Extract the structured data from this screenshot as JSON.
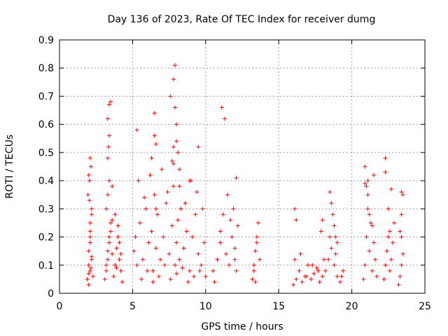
{
  "chart_data": {
    "type": "scatter",
    "title": "Day 136 of 2023, Rate Of TEC Index for receiver dumg",
    "xlabel": "GPS time / hours",
    "ylabel": "ROTI / TECUs",
    "xlim": [
      0,
      25
    ],
    "ylim": [
      0,
      0.9
    ],
    "xticks": [
      0,
      5,
      10,
      15,
      20,
      25
    ],
    "yticks": [
      0,
      0.1,
      0.2,
      0.3,
      0.4,
      0.5,
      0.6,
      0.7,
      0.8,
      0.9
    ],
    "grid": true,
    "marker": "+",
    "color": "#ff0000",
    "series": [
      {
        "x": [
          1.9,
          2.0,
          2.0,
          2.1,
          2.1,
          2.2,
          2.0,
          2.1,
          2.2,
          2.3,
          1.95,
          2.05,
          2.15,
          2.1,
          2.0,
          2.2,
          2.1,
          2.0,
          2.1,
          2.2,
          2.05,
          2.15,
          3.1,
          3.2,
          3.3,
          3.4,
          3.5,
          3.2,
          3.3,
          3.4,
          3.3,
          3.35,
          3.4,
          3.3,
          3.4,
          3.5,
          3.6,
          3.2,
          3.3,
          3.4,
          3.5,
          3.6,
          3.7,
          3.8,
          3.9,
          4.0,
          4.1,
          4.2,
          4.3,
          3.8,
          4.0,
          4.2,
          3.9,
          4.1,
          3.6,
          5.1,
          5.2,
          5.3,
          5.5,
          5.7,
          5.9,
          6.1,
          6.3,
          6.4,
          6.5,
          6.6,
          6.7,
          6.9,
          7.1,
          7.3,
          7.5,
          7.7,
          7.8,
          7.9,
          8.0,
          8.1,
          8.2,
          8.3,
          8.5,
          8.7,
          8.9,
          9.1,
          9.3,
          9.5,
          9.7,
          9.9,
          10.0,
          5.6,
          6.0,
          6.4,
          6.8,
          7.2,
          7.6,
          8.0,
          8.4,
          8.8,
          9.2,
          9.6,
          5.4,
          5.8,
          6.2,
          6.6,
          7.0,
          7.4,
          7.8,
          8.2,
          8.6,
          9.0,
          9.4,
          9.8,
          5.3,
          6.5,
          6.5,
          7.6,
          7.8,
          7.9,
          7.9,
          8.0,
          8.0,
          8.1,
          8.2,
          7.7,
          7.8,
          6.3,
          6.6,
          8.9,
          9.5,
          10.5,
          10.8,
          11.0,
          11.0,
          11.2,
          11.4,
          11.6,
          11.8,
          12.0,
          12.1,
          12.2,
          11.1,
          11.5,
          11.9,
          12.1,
          10.6,
          11.3,
          11.7,
          12.0,
          13.2,
          13.3,
          13.4,
          13.5,
          13.6,
          13.7,
          13.3,
          13.5,
          13.4,
          16.0,
          16.2,
          16.4,
          16.6,
          16.8,
          17.0,
          17.2,
          17.4,
          17.6,
          17.8,
          18.0,
          18.2,
          18.4,
          18.6,
          18.8,
          19.0,
          19.2,
          19.4,
          16.1,
          16.5,
          16.9,
          17.3,
          17.7,
          18.1,
          18.5,
          18.9,
          19.3,
          16.1,
          16.2,
          18.5,
          18.6,
          18.7,
          18.8,
          18.9,
          19.0,
          17.9,
          18.0,
          20.8,
          20.9,
          21.0,
          21.1,
          21.2,
          21.3,
          21.4,
          21.5,
          21.6,
          21.7,
          21.0,
          21.2,
          21.4,
          20.9,
          21.1,
          22.2,
          22.3,
          22.4,
          22.5,
          22.6,
          22.7,
          22.8,
          22.9,
          22.3,
          22.5,
          22.7,
          23.2,
          23.3,
          23.4,
          23.5,
          23.3,
          23.4,
          23.5,
          23.4,
          20.9,
          21.1,
          22.3,
          22.6,
          21.5,
          23.4
        ],
        "y": [
          0.05,
          0.1,
          0.15,
          0.08,
          0.2,
          0.12,
          0.03,
          0.25,
          0.3,
          0.06,
          0.35,
          0.4,
          0.45,
          0.48,
          0.42,
          0.28,
          0.18,
          0.07,
          0.22,
          0.13,
          0.33,
          0.09,
          0.05,
          0.1,
          0.15,
          0.2,
          0.25,
          0.3,
          0.35,
          0.4,
          0.48,
          0.52,
          0.56,
          0.62,
          0.67,
          0.68,
          0.38,
          0.08,
          0.12,
          0.18,
          0.22,
          0.14,
          0.06,
          0.1,
          0.16,
          0.24,
          0.12,
          0.08,
          0.04,
          0.28,
          0.2,
          0.14,
          0.09,
          0.18,
          0.26,
          0.15,
          0.2,
          0.1,
          0.25,
          0.12,
          0.3,
          0.18,
          0.22,
          0.08,
          0.35,
          0.16,
          0.28,
          0.12,
          0.2,
          0.32,
          0.14,
          0.24,
          0.38,
          0.1,
          0.18,
          0.26,
          0.12,
          0.3,
          0.16,
          0.22,
          0.08,
          0.2,
          0.28,
          0.14,
          0.1,
          0.18,
          0.06,
          0.05,
          0.08,
          0.04,
          0.06,
          0.1,
          0.05,
          0.07,
          0.09,
          0.04,
          0.06,
          0.08,
          0.4,
          0.34,
          0.42,
          0.3,
          0.44,
          0.36,
          0.46,
          0.38,
          0.32,
          0.4,
          0.36,
          0.3,
          0.58,
          0.56,
          0.64,
          0.7,
          0.76,
          0.81,
          0.66,
          0.6,
          0.54,
          0.5,
          0.44,
          0.47,
          0.52,
          0.48,
          0.53,
          0.4,
          0.52,
          0.08,
          0.12,
          0.18,
          0.22,
          0.28,
          0.14,
          0.1,
          0.2,
          0.16,
          0.08,
          0.24,
          0.66,
          0.35,
          0.3,
          0.41,
          0.04,
          0.62,
          0.26,
          0.12,
          0.05,
          0.1,
          0.15,
          0.2,
          0.25,
          0.12,
          0.08,
          0.18,
          0.04,
          0.03,
          0.05,
          0.08,
          0.04,
          0.06,
          0.1,
          0.05,
          0.07,
          0.09,
          0.04,
          0.06,
          0.08,
          0.12,
          0.16,
          0.1,
          0.06,
          0.04,
          0.08,
          0.12,
          0.14,
          0.06,
          0.1,
          0.08,
          0.12,
          0.2,
          0.14,
          0.06,
          0.3,
          0.26,
          0.36,
          0.32,
          0.28,
          0.24,
          0.2,
          0.18,
          0.22,
          0.26,
          0.05,
          0.1,
          0.2,
          0.3,
          0.15,
          0.25,
          0.08,
          0.18,
          0.12,
          0.06,
          0.38,
          0.28,
          0.24,
          0.45,
          0.4,
          0.05,
          0.1,
          0.15,
          0.2,
          0.08,
          0.12,
          0.18,
          0.25,
          0.43,
          0.3,
          0.37,
          0.03,
          0.06,
          0.1,
          0.14,
          0.22,
          0.28,
          0.35,
          0.36,
          0.39,
          0.35,
          0.48,
          0.22,
          0.42,
          0.2
        ]
      }
    ]
  }
}
